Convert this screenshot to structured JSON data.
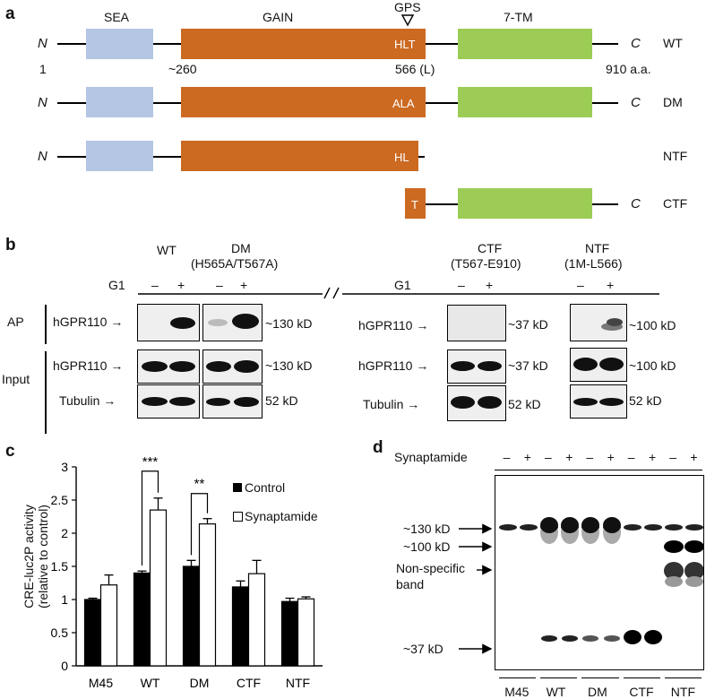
{
  "panel_a": {
    "label": "a",
    "domains": {
      "sea": "SEA",
      "gain": "GAIN",
      "gps": "GPS",
      "tm": "7-TM"
    },
    "positions": {
      "p1": "1",
      "p2": "~260",
      "p3": "566 (L)",
      "p4": "910 a.a."
    },
    "rows": [
      {
        "name": "WT",
        "n": "N",
        "c": "C",
        "motif": "HLT"
      },
      {
        "name": "DM",
        "n": "N",
        "c": "C",
        "motif": "ALA"
      },
      {
        "name": "NTF",
        "n": "N",
        "c": "",
        "motif": "HL"
      },
      {
        "name": "CTF",
        "n": "",
        "c": "C",
        "motif": "T"
      }
    ]
  },
  "panel_b": {
    "label": "b",
    "wt_header": "WT",
    "dm_header_1": "DM",
    "dm_header_2": "(H565A/T567A)",
    "ctf_header_1": "CTF",
    "ctf_header_2": "(T567-E910)",
    "ntf_header_1": "NTF",
    "ntf_header_2": "(1M-L566)",
    "g1": "G1",
    "minus": "–",
    "plus": "+",
    "ap": "AP",
    "input": "Input",
    "hgpr": "hGPR110",
    "tubulin": "Tubulin",
    "arrow": "→",
    "sizes": {
      "s130": "~130 kD",
      "s37": "~37 kD",
      "s100": "~100 kD",
      "s52": "52 kD"
    }
  },
  "panel_c": {
    "label": "c",
    "ylabel_1": "CRE-luc2P activity",
    "ylabel_2": "(relative to control)",
    "legend": {
      "control": "Control",
      "syn": "Synaptamide"
    },
    "sig": {
      "wt": "***",
      "dm": "**"
    }
  },
  "panel_d": {
    "label": "d",
    "synaptamide": "Synaptamide",
    "markers": {
      "m130": "~130 kD",
      "m100": "~100 kD",
      "ns1": "Non-specific",
      "ns2": "band",
      "m37": "~37 kD"
    },
    "lanes": [
      "M45",
      "WT",
      "DM",
      "CTF",
      "NTF"
    ]
  },
  "chart_data": {
    "type": "bar",
    "categories": [
      "M45",
      "WT",
      "DM",
      "CTF",
      "NTF"
    ],
    "series": [
      {
        "name": "Control",
        "values": [
          1.0,
          1.4,
          1.5,
          1.19,
          0.97
        ],
        "errors": [
          0.02,
          0.03,
          0.09,
          0.09,
          0.05
        ],
        "color": "#000000"
      },
      {
        "name": "Synaptamide",
        "values": [
          1.22,
          2.35,
          2.14,
          1.39,
          1.01
        ],
        "errors": [
          0.15,
          0.18,
          0.08,
          0.2,
          0.03
        ],
        "color": "#ffffff"
      }
    ],
    "ylim": [
      0,
      3
    ],
    "yticks": [
      "0",
      "0.5",
      "1",
      "1.5",
      "2",
      "2.5",
      "3"
    ],
    "ylabel": "CRE-luc2P activity (relative to control)",
    "xlabel": "",
    "significance": [
      {
        "category": "WT",
        "label": "***"
      },
      {
        "category": "DM",
        "label": "**"
      }
    ]
  }
}
